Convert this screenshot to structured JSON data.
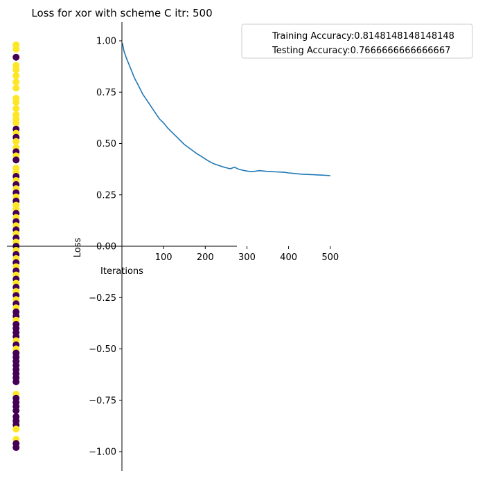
{
  "chart_data": {
    "type": "line",
    "title": "Loss for xor with scheme C itr: 500",
    "xlabel": "Iterations",
    "ylabel": "Loss",
    "xlim": [
      -275,
      525
    ],
    "ylim": [
      -1.1,
      1.1
    ],
    "x_ticks": [
      100,
      200,
      300,
      400,
      500
    ],
    "x_tick_labels": [
      "100",
      "200",
      "300",
      "400",
      "500"
    ],
    "y_ticks": [
      -1.0,
      -0.75,
      -0.5,
      -0.25,
      0.0,
      0.25,
      0.5,
      0.75,
      1.0
    ],
    "y_tick_labels": [
      "−1.00",
      "−0.75",
      "−0.50",
      "−0.25",
      "0.00",
      "0.25",
      "0.50",
      "0.75",
      "1.00"
    ],
    "grid": false,
    "legend_position": "upper-right-outside",
    "legend": [
      "Training Accuracy:0.8148148148148148",
      "Testing Accuracy:0.7666666666666667"
    ],
    "series": [
      {
        "kind": "line",
        "color": "#1f77b4",
        "points": [
          [
            1,
            0.99
          ],
          [
            5,
            0.95
          ],
          [
            10,
            0.92
          ],
          [
            20,
            0.87
          ],
          [
            30,
            0.82
          ],
          [
            40,
            0.78
          ],
          [
            50,
            0.74
          ],
          [
            60,
            0.71
          ],
          [
            70,
            0.68
          ],
          [
            80,
            0.65
          ],
          [
            90,
            0.62
          ],
          [
            100,
            0.6
          ],
          [
            110,
            0.575
          ],
          [
            120,
            0.555
          ],
          [
            130,
            0.535
          ],
          [
            140,
            0.515
          ],
          [
            150,
            0.495
          ],
          [
            160,
            0.48
          ],
          [
            170,
            0.465
          ],
          [
            180,
            0.45
          ],
          [
            190,
            0.438
          ],
          [
            200,
            0.425
          ],
          [
            210,
            0.412
          ],
          [
            220,
            0.402
          ],
          [
            230,
            0.395
          ],
          [
            240,
            0.388
          ],
          [
            250,
            0.382
          ],
          [
            260,
            0.377
          ],
          [
            270,
            0.385
          ],
          [
            280,
            0.375
          ],
          [
            290,
            0.37
          ],
          [
            300,
            0.366
          ],
          [
            310,
            0.363
          ],
          [
            320,
            0.365
          ],
          [
            330,
            0.368
          ],
          [
            340,
            0.366
          ],
          [
            350,
            0.364
          ],
          [
            360,
            0.363
          ],
          [
            370,
            0.362
          ],
          [
            380,
            0.361
          ],
          [
            390,
            0.36
          ],
          [
            400,
            0.357
          ],
          [
            410,
            0.355
          ],
          [
            420,
            0.353
          ],
          [
            430,
            0.351
          ],
          [
            440,
            0.35
          ],
          [
            450,
            0.349
          ],
          [
            460,
            0.348
          ],
          [
            470,
            0.347
          ],
          [
            480,
            0.346
          ],
          [
            490,
            0.345
          ],
          [
            500,
            0.343
          ]
        ]
      },
      {
        "kind": "scatter",
        "class_colors": {
          "0": "#440154",
          "1": "#fde725"
        },
        "x": -254,
        "points": [
          [
            0.98,
            1
          ],
          [
            0.96,
            1
          ],
          [
            0.92,
            0
          ],
          [
            0.88,
            1
          ],
          [
            0.86,
            1
          ],
          [
            0.83,
            1
          ],
          [
            0.8,
            1
          ],
          [
            0.77,
            1
          ],
          [
            0.72,
            1
          ],
          [
            0.7,
            1
          ],
          [
            0.67,
            1
          ],
          [
            0.64,
            1
          ],
          [
            0.62,
            1
          ],
          [
            0.6,
            1
          ],
          [
            0.57,
            0
          ],
          [
            0.55,
            1
          ],
          [
            0.53,
            0
          ],
          [
            0.51,
            1
          ],
          [
            0.48,
            1
          ],
          [
            0.46,
            0
          ],
          [
            0.44,
            1
          ],
          [
            0.42,
            0
          ],
          [
            0.38,
            1
          ],
          [
            0.36,
            1
          ],
          [
            0.34,
            0
          ],
          [
            0.32,
            1
          ],
          [
            0.3,
            0
          ],
          [
            0.28,
            1
          ],
          [
            0.26,
            0
          ],
          [
            0.24,
            1
          ],
          [
            0.22,
            0
          ],
          [
            0.2,
            1
          ],
          [
            0.18,
            1
          ],
          [
            0.16,
            0
          ],
          [
            0.14,
            1
          ],
          [
            0.12,
            0
          ],
          [
            0.1,
            1
          ],
          [
            0.08,
            0
          ],
          [
            0.06,
            1
          ],
          [
            0.04,
            0
          ],
          [
            0.02,
            1
          ],
          [
            0.0,
            0
          ],
          [
            -0.02,
            1
          ],
          [
            -0.04,
            0
          ],
          [
            -0.06,
            1
          ],
          [
            -0.08,
            0
          ],
          [
            -0.1,
            1
          ],
          [
            -0.12,
            0
          ],
          [
            -0.14,
            1
          ],
          [
            -0.16,
            0
          ],
          [
            -0.18,
            1
          ],
          [
            -0.2,
            0
          ],
          [
            -0.22,
            1
          ],
          [
            -0.24,
            0
          ],
          [
            -0.26,
            1
          ],
          [
            -0.28,
            0
          ],
          [
            -0.3,
            1
          ],
          [
            -0.32,
            0
          ],
          [
            -0.34,
            0
          ],
          [
            -0.36,
            1
          ],
          [
            -0.38,
            0
          ],
          [
            -0.4,
            0
          ],
          [
            -0.42,
            0
          ],
          [
            -0.44,
            0
          ],
          [
            -0.46,
            1
          ],
          [
            -0.48,
            0
          ],
          [
            -0.5,
            1
          ],
          [
            -0.52,
            0
          ],
          [
            -0.54,
            0
          ],
          [
            -0.56,
            0
          ],
          [
            -0.58,
            0
          ],
          [
            -0.6,
            0
          ],
          [
            -0.62,
            0
          ],
          [
            -0.64,
            0
          ],
          [
            -0.66,
            0
          ],
          [
            -0.72,
            1
          ],
          [
            -0.74,
            0
          ],
          [
            -0.76,
            0
          ],
          [
            -0.78,
            0
          ],
          [
            -0.8,
            0
          ],
          [
            -0.83,
            0
          ],
          [
            -0.85,
            0
          ],
          [
            -0.87,
            0
          ],
          [
            -0.89,
            1
          ],
          [
            -0.94,
            1
          ],
          [
            -0.96,
            0
          ],
          [
            -0.98,
            0
          ]
        ]
      }
    ]
  }
}
